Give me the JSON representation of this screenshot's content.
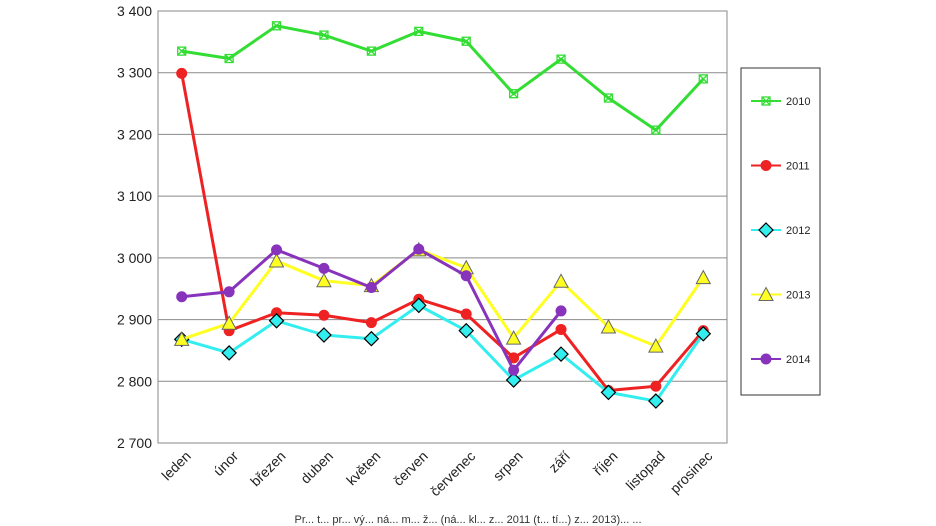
{
  "chart_data": {
    "type": "line",
    "categories": [
      "leden",
      "únor",
      "březen",
      "duben",
      "květen",
      "červen",
      "červenec",
      "srpen",
      "září",
      "říjen",
      "listopad",
      "prosinec"
    ],
    "ylim": [
      2700,
      3400
    ],
    "yticks": [
      2700,
      2800,
      2900,
      3000,
      3100,
      3200,
      3300,
      3400
    ],
    "ytick_labels": [
      "2 700",
      "2 800",
      "2 900",
      "3 000",
      "3 100",
      "3 200",
      "3 300",
      "3 400"
    ],
    "grid": "horizontal",
    "legend_position": "right",
    "series": [
      {
        "name": "2010",
        "color": "#33dd33",
        "marker": "square-x",
        "values": [
          3335,
          3323,
          3376,
          3361,
          3335,
          3367,
          3351,
          3266,
          3322,
          3259,
          3207,
          3290
        ]
      },
      {
        "name": "2011",
        "color": "#ee2222",
        "marker": "circle",
        "values": [
          3299,
          2882,
          2911,
          2907,
          2895,
          2933,
          2909,
          2838,
          2884,
          2785,
          2792,
          2882
        ]
      },
      {
        "name": "2012",
        "color": "#33eeee",
        "marker": "diamond",
        "values": [
          2868,
          2846,
          2898,
          2875,
          2869,
          2923,
          2882,
          2802,
          2844,
          2782,
          2768,
          2877
        ]
      },
      {
        "name": "2013",
        "color": "#ffff22",
        "marker": "triangle",
        "values": [
          2868,
          2894,
          2995,
          2963,
          2955,
          3013,
          2984,
          2870,
          2962,
          2888,
          2857,
          2968
        ]
      },
      {
        "name": "2014",
        "color": "#8833bb",
        "marker": "circle",
        "values": [
          2937,
          2945,
          3013,
          2983,
          2952,
          3014,
          2971,
          2818,
          2914,
          null,
          null,
          null
        ]
      }
    ]
  },
  "caption": "Pr... t... pr... vý... ná... m... ž... (ná... kl... z... 2011 (t... tí...) z... 2013)... ..."
}
